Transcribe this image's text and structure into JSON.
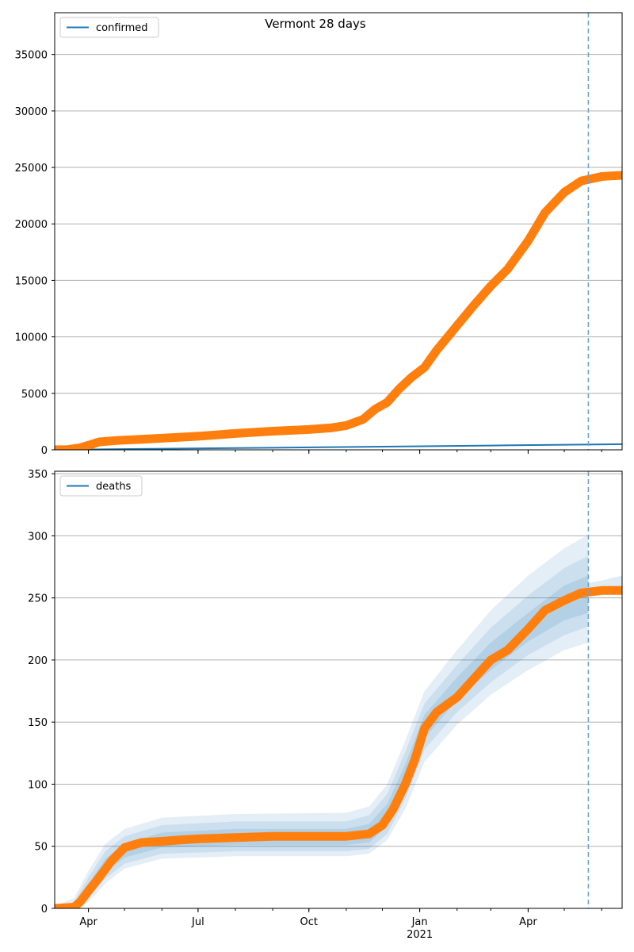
{
  "figure": {
    "title": "Vermont 28 days",
    "colors": {
      "model": "#1f77b4",
      "observed": "#ff7f0e",
      "band": "#1f77b4",
      "vline": "#6fa3cf",
      "grid": "#b0b0b0"
    }
  },
  "chart_data": [
    {
      "type": "line",
      "legend": "confirmed",
      "legend_position": "top-left",
      "grid": "horizontal",
      "x_ticks": [
        {
          "date": "2020-04-01",
          "label": "Apr"
        },
        {
          "date": "2020-07-01",
          "label": "Jul"
        },
        {
          "date": "2020-10-01",
          "label": "Oct"
        },
        {
          "date": "2021-01-01",
          "label": "Jan",
          "sublabel": "2021"
        },
        {
          "date": "2021-04-01",
          "label": "Apr"
        }
      ],
      "xlim": [
        "2020-03-04",
        "2021-06-18"
      ],
      "ylim": [
        0,
        38700
      ],
      "yticks": [
        0,
        5000,
        10000,
        15000,
        20000,
        25000,
        30000,
        35000
      ],
      "vline": "2021-05-21",
      "series": [
        {
          "name": "confirmed",
          "role": "model",
          "points": [
            [
              "2020-03-04",
              0
            ],
            [
              "2020-06-01",
              100
            ],
            [
              "2020-09-01",
              180
            ],
            [
              "2020-12-01",
              280
            ],
            [
              "2021-03-01",
              380
            ],
            [
              "2021-06-18",
              500
            ]
          ]
        },
        {
          "role": "observed",
          "points": [
            [
              "2020-03-04",
              0
            ],
            [
              "2020-03-15",
              20
            ],
            [
              "2020-03-25",
              180
            ],
            [
              "2020-04-01",
              400
            ],
            [
              "2020-04-10",
              700
            ],
            [
              "2020-04-25",
              830
            ],
            [
              "2020-05-15",
              930
            ],
            [
              "2020-06-10",
              1080
            ],
            [
              "2020-07-01",
              1200
            ],
            [
              "2020-08-01",
              1450
            ],
            [
              "2020-09-01",
              1650
            ],
            [
              "2020-10-01",
              1800
            ],
            [
              "2020-10-20",
              1950
            ],
            [
              "2020-11-01",
              2150
            ],
            [
              "2020-11-15",
              2700
            ],
            [
              "2020-11-25",
              3600
            ],
            [
              "2020-12-05",
              4200
            ],
            [
              "2020-12-15",
              5400
            ],
            [
              "2020-12-25",
              6400
            ],
            [
              "2021-01-05",
              7300
            ],
            [
              "2021-01-15",
              8800
            ],
            [
              "2021-02-01",
              11000
            ],
            [
              "2021-02-15",
              12800
            ],
            [
              "2021-03-01",
              14500
            ],
            [
              "2021-03-15",
              16000
            ],
            [
              "2021-04-01",
              18500
            ],
            [
              "2021-04-15",
              21000
            ],
            [
              "2021-05-01",
              22800
            ],
            [
              "2021-05-15",
              23800
            ],
            [
              "2021-06-01",
              24200
            ],
            [
              "2021-06-18",
              24300
            ]
          ]
        }
      ]
    },
    {
      "type": "line",
      "legend": "deaths",
      "legend_position": "top-left",
      "grid": "horizontal",
      "x_ticks": [
        {
          "date": "2020-04-01",
          "label": "Apr"
        },
        {
          "date": "2020-07-01",
          "label": "Jul"
        },
        {
          "date": "2020-10-01",
          "label": "Oct"
        },
        {
          "date": "2021-01-01",
          "label": "Jan",
          "sublabel": "2021"
        },
        {
          "date": "2021-04-01",
          "label": "Apr"
        }
      ],
      "xlim": [
        "2020-03-04",
        "2021-06-18"
      ],
      "ylim": [
        0,
        352
      ],
      "yticks": [
        0,
        50,
        100,
        150,
        200,
        250,
        300,
        350
      ],
      "vline": "2021-05-21",
      "series": [
        {
          "name": "deaths",
          "role": "model",
          "points": [
            [
              "2021-05-21",
              256
            ],
            [
              "2021-06-01",
              257
            ],
            [
              "2021-06-18",
              259
            ]
          ]
        },
        {
          "role": "observed",
          "points": [
            [
              "2020-03-04",
              0
            ],
            [
              "2020-03-20",
              1
            ],
            [
              "2020-03-25",
              5
            ],
            [
              "2020-04-01",
              14
            ],
            [
              "2020-04-10",
              25
            ],
            [
              "2020-04-20",
              38
            ],
            [
              "2020-05-01",
              49
            ],
            [
              "2020-05-15",
              53
            ],
            [
              "2020-06-01",
              54
            ],
            [
              "2020-06-15",
              55
            ],
            [
              "2020-07-01",
              56
            ],
            [
              "2020-08-01",
              57
            ],
            [
              "2020-09-01",
              58
            ],
            [
              "2020-10-01",
              58
            ],
            [
              "2020-11-01",
              58
            ],
            [
              "2020-11-20",
              60
            ],
            [
              "2020-12-01",
              67
            ],
            [
              "2020-12-10",
              80
            ],
            [
              "2020-12-20",
              100
            ],
            [
              "2020-12-28",
              120
            ],
            [
              "2021-01-05",
              145
            ],
            [
              "2021-01-15",
              158
            ],
            [
              "2021-02-01",
              170
            ],
            [
              "2021-02-15",
              185
            ],
            [
              "2021-03-01",
              200
            ],
            [
              "2021-03-15",
              208
            ],
            [
              "2021-04-01",
              225
            ],
            [
              "2021-04-15",
              240
            ],
            [
              "2021-05-01",
              248
            ],
            [
              "2021-05-15",
              254
            ],
            [
              "2021-06-01",
              256
            ],
            [
              "2021-06-18",
              256
            ]
          ]
        }
      ],
      "bands": [
        {
          "level": "outer",
          "points": [
            [
              "2020-03-04",
              0,
              2
            ],
            [
              "2020-03-20",
              0,
              8
            ],
            [
              "2020-04-01",
              5,
              30
            ],
            [
              "2020-04-15",
              20,
              52
            ],
            [
              "2020-05-01",
              32,
              64
            ],
            [
              "2020-06-01",
              40,
              73
            ],
            [
              "2020-08-01",
              42,
              76
            ],
            [
              "2020-11-01",
              42,
              77
            ],
            [
              "2020-11-20",
              44,
              82
            ],
            [
              "2020-12-05",
              55,
              100
            ],
            [
              "2020-12-20",
              80,
              135
            ],
            [
              "2021-01-05",
              118,
              175
            ],
            [
              "2021-02-01",
              148,
              208
            ],
            [
              "2021-03-01",
              172,
              240
            ],
            [
              "2021-04-01",
              192,
              268
            ],
            [
              "2021-05-01",
              208,
              290
            ],
            [
              "2021-05-21",
              214,
              301
            ]
          ]
        },
        {
          "level": "middle",
          "points": [
            [
              "2020-03-04",
              0,
              1
            ],
            [
              "2020-03-20",
              0,
              5
            ],
            [
              "2020-04-01",
              8,
              25
            ],
            [
              "2020-04-15",
              24,
              46
            ],
            [
              "2020-05-01",
              36,
              58
            ],
            [
              "2020-06-01",
              44,
              67
            ],
            [
              "2020-08-01",
              46,
              70
            ],
            [
              "2020-11-01",
              46,
              70
            ],
            [
              "2020-11-20",
              48,
              75
            ],
            [
              "2020-12-05",
              60,
              92
            ],
            [
              "2020-12-20",
              88,
              126
            ],
            [
              "2021-01-05",
              128,
              165
            ],
            [
              "2021-02-01",
              158,
              196
            ],
            [
              "2021-03-01",
              182,
              226
            ],
            [
              "2021-04-01",
              204,
              252
            ],
            [
              "2021-05-01",
              220,
              274
            ],
            [
              "2021-05-21",
              227,
              284
            ]
          ]
        },
        {
          "level": "inner",
          "points": [
            [
              "2020-03-04",
              0,
              1
            ],
            [
              "2020-03-20",
              1,
              3
            ],
            [
              "2020-04-01",
              11,
              20
            ],
            [
              "2020-04-15",
              29,
              40
            ],
            [
              "2020-05-01",
              41,
              52
            ],
            [
              "2020-06-01",
              49,
              61
            ],
            [
              "2020-08-01",
              51,
              64
            ],
            [
              "2020-11-01",
              51,
              64
            ],
            [
              "2020-11-20",
              53,
              68
            ],
            [
              "2020-12-05",
              66,
              84
            ],
            [
              "2020-12-20",
              96,
              116
            ],
            [
              "2021-01-05",
              137,
              156
            ],
            [
              "2021-02-01",
              168,
              186
            ],
            [
              "2021-03-01",
              192,
              214
            ],
            [
              "2021-04-01",
              215,
              238
            ],
            [
              "2021-05-01",
              232,
              260
            ],
            [
              "2021-05-21",
              238,
              268
            ]
          ]
        },
        {
          "level": "forecast",
          "points": [
            [
              "2021-05-21",
              252,
              262
            ],
            [
              "2021-06-01",
              253,
              264
            ],
            [
              "2021-06-18",
              254,
              268
            ]
          ]
        }
      ]
    }
  ]
}
